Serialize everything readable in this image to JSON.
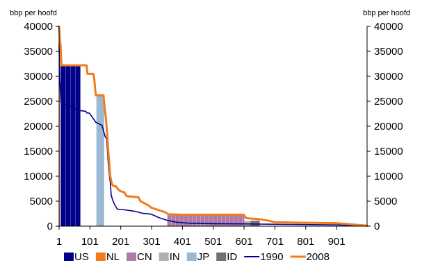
{
  "chart_data": {
    "type": "bar",
    "y_unit_left": "bbp per hoofd",
    "y_unit_right": "bbp per hoofd",
    "x_ticks": [
      "1",
      "101",
      "201",
      "301",
      "401",
      "501",
      "601",
      "701",
      "801",
      "901"
    ],
    "xlim": [
      1,
      1000
    ],
    "y_ticks": [
      "0",
      "5000",
      "10000",
      "15000",
      "20000",
      "25000",
      "30000",
      "35000",
      "40000"
    ],
    "ylim": [
      0,
      40000
    ],
    "grid": false,
    "legend_position": "bottom",
    "bar_series": [
      {
        "name": "US",
        "color": "#00008b",
        "x_range": [
          6,
          70
        ],
        "value": 32200
      },
      {
        "name": "NL",
        "color": "#f07c1e",
        "x_range": [
          1,
          3
        ],
        "value": 40000
      },
      {
        "name": "CN",
        "color": "#b07aa8",
        "x_range": [
          352,
          602
        ],
        "value": 2200
      },
      {
        "name": "IN",
        "color": "#b0b0b0",
        "x_range": [
          602,
          650
        ],
        "value": 1000
      },
      {
        "name": "JP",
        "color": "#9bb7d4",
        "x_range": [
          122,
          147
        ],
        "value": 26200
      },
      {
        "name": "ID",
        "color": "#707070",
        "x_range": [
          622,
          652
        ],
        "value": 1100
      }
    ],
    "line_series": [
      {
        "name": "1990",
        "color": "#00008b",
        "points": [
          [
            1,
            36500
          ],
          [
            3,
            29000
          ],
          [
            5,
            27500
          ],
          [
            7,
            24800
          ],
          [
            10,
            24500
          ],
          [
            30,
            24300
          ],
          [
            60,
            23200
          ],
          [
            88,
            23000
          ],
          [
            90,
            22700
          ],
          [
            100,
            22600
          ],
          [
            120,
            20800
          ],
          [
            140,
            20200
          ],
          [
            150,
            18000
          ],
          [
            155,
            17500
          ],
          [
            158,
            15000
          ],
          [
            160,
            13000
          ],
          [
            163,
            10800
          ],
          [
            167,
            8800
          ],
          [
            170,
            6200
          ],
          [
            175,
            5200
          ],
          [
            182,
            4200
          ],
          [
            190,
            3400
          ],
          [
            210,
            3300
          ],
          [
            245,
            3000
          ],
          [
            270,
            2600
          ],
          [
            300,
            2400
          ],
          [
            325,
            1700
          ],
          [
            350,
            1200
          ],
          [
            380,
            800
          ],
          [
            420,
            600
          ],
          [
            500,
            500
          ],
          [
            600,
            450
          ],
          [
            700,
            380
          ],
          [
            800,
            320
          ],
          [
            900,
            250
          ],
          [
            950,
            150
          ],
          [
            990,
            80
          ],
          [
            1000,
            50
          ]
        ]
      },
      {
        "name": "2008",
        "color": "#f07c1e",
        "points": [
          [
            1,
            40000
          ],
          [
            3,
            38000
          ],
          [
            6,
            36000
          ],
          [
            8,
            33000
          ],
          [
            10,
            32200
          ],
          [
            90,
            32200
          ],
          [
            93,
            30500
          ],
          [
            112,
            30500
          ],
          [
            115,
            29500
          ],
          [
            120,
            26200
          ],
          [
            145,
            26200
          ],
          [
            150,
            23000
          ],
          [
            153,
            21500
          ],
          [
            157,
            18500
          ],
          [
            160,
            15500
          ],
          [
            163,
            13000
          ],
          [
            167,
            10000
          ],
          [
            172,
            8500
          ],
          [
            178,
            8000
          ],
          [
            185,
            8000
          ],
          [
            192,
            7400
          ],
          [
            200,
            7000
          ],
          [
            212,
            6800
          ],
          [
            220,
            6000
          ],
          [
            258,
            5800
          ],
          [
            265,
            5000
          ],
          [
            280,
            4500
          ],
          [
            290,
            4200
          ],
          [
            300,
            3700
          ],
          [
            320,
            3300
          ],
          [
            345,
            2800
          ],
          [
            355,
            2400
          ],
          [
            400,
            2300
          ],
          [
            600,
            2300
          ],
          [
            608,
            1600
          ],
          [
            650,
            1400
          ],
          [
            680,
            1100
          ],
          [
            700,
            800
          ],
          [
            780,
            700
          ],
          [
            850,
            650
          ],
          [
            900,
            600
          ],
          [
            930,
            450
          ],
          [
            960,
            300
          ],
          [
            985,
            200
          ],
          [
            1000,
            80
          ]
        ]
      }
    ]
  },
  "legend": [
    {
      "label": "US",
      "kind": "box",
      "color": "#00008b"
    },
    {
      "label": "NL",
      "kind": "box",
      "color": "#f07c1e"
    },
    {
      "label": "CN",
      "kind": "box",
      "color": "#b07aa8"
    },
    {
      "label": "IN",
      "kind": "box",
      "color": "#b0b0b0"
    },
    {
      "label": "JP",
      "kind": "box",
      "color": "#9bb7d4"
    },
    {
      "label": "ID",
      "kind": "box",
      "color": "#707070"
    },
    {
      "label": "1990",
      "kind": "line",
      "color": "#00008b"
    },
    {
      "label": "2008",
      "kind": "line",
      "color": "#f07c1e"
    }
  ]
}
